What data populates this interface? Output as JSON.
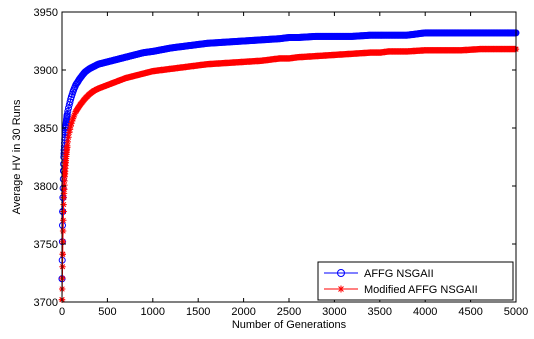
{
  "chart_data": {
    "type": "line",
    "title": "",
    "xlabel": "Number of Generations",
    "ylabel": "Average HV in 30 Runs",
    "xlim": [
      0,
      5000
    ],
    "ylim": [
      3700,
      3950
    ],
    "xticks": [
      0,
      500,
      1000,
      1500,
      2000,
      2500,
      3000,
      3500,
      4000,
      4500,
      5000
    ],
    "yticks": [
      3700,
      3750,
      3800,
      3850,
      3900,
      3950
    ],
    "grid": false,
    "legend_position": "bottom-right",
    "series": [
      {
        "name": "AFFG NSGAII",
        "color": "#0000ff",
        "marker": "circle",
        "x": [
          0,
          5,
          10,
          15,
          20,
          30,
          40,
          50,
          60,
          80,
          100,
          120,
          150,
          200,
          250,
          300,
          350,
          400,
          500,
          600,
          700,
          800,
          900,
          1000,
          1200,
          1400,
          1500,
          1600,
          1800,
          2000,
          2200,
          2400,
          2500,
          2600,
          2800,
          3000,
          3200,
          3400,
          3500,
          3600,
          3800,
          3900,
          4000,
          4200,
          4400,
          4600,
          4800,
          5000
        ],
        "y": [
          3720,
          3760,
          3790,
          3810,
          3825,
          3840,
          3850,
          3857,
          3863,
          3870,
          3876,
          3881,
          3887,
          3893,
          3898,
          3901,
          3903,
          3905,
          3907,
          3909,
          3911,
          3913,
          3915,
          3916,
          3919,
          3921,
          3922,
          3923,
          3924,
          3925,
          3926,
          3927,
          3928,
          3928,
          3929,
          3929,
          3929,
          3930,
          3930,
          3930,
          3930,
          3931,
          3932,
          3932,
          3932,
          3932,
          3932,
          3932
        ]
      },
      {
        "name": "Modified AFFG NSGAII",
        "color": "#ff0000",
        "marker": "star",
        "x": [
          0,
          5,
          10,
          15,
          20,
          30,
          40,
          50,
          60,
          80,
          100,
          120,
          150,
          200,
          250,
          300,
          350,
          400,
          500,
          600,
          700,
          800,
          900,
          1000,
          1200,
          1400,
          1500,
          1600,
          1800,
          2000,
          2200,
          2400,
          2500,
          2600,
          2800,
          3000,
          3200,
          3400,
          3500,
          3600,
          3800,
          4000,
          4200,
          4400,
          4600,
          4800,
          5000
        ],
        "y": [
          3702,
          3725,
          3752,
          3775,
          3790,
          3808,
          3820,
          3829,
          3836,
          3846,
          3853,
          3858,
          3864,
          3870,
          3875,
          3879,
          3882,
          3884,
          3887,
          3890,
          3893,
          3895,
          3897,
          3899,
          3901,
          3903,
          3904,
          3905,
          3906,
          3907,
          3908,
          3910,
          3910,
          3911,
          3912,
          3913,
          3914,
          3915,
          3915,
          3916,
          3916,
          3917,
          3917,
          3917,
          3918,
          3918,
          3918
        ]
      }
    ]
  }
}
